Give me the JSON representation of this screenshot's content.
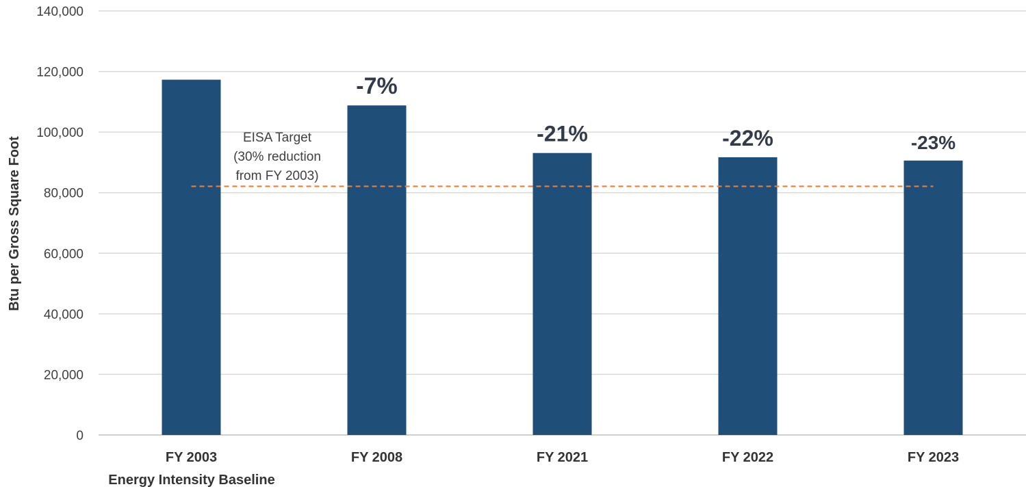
{
  "chart_data": {
    "type": "bar",
    "title": "",
    "ylabel": "Btu per Gross Square Foot",
    "ylim": [
      0,
      140000
    ],
    "yticks": [
      0,
      20000,
      40000,
      60000,
      80000,
      100000,
      120000,
      140000
    ],
    "ytick_labels": [
      "0",
      "20,000",
      "40,000",
      "60,000",
      "80,000",
      "100,000",
      "120,000",
      "140,000"
    ],
    "grid": true,
    "categories": [
      "FY 2003",
      "FY 2008",
      "FY 2021",
      "FY 2022",
      "FY 2023"
    ],
    "category_sublabel": "Energy Intensity Baseline",
    "values": [
      117300,
      108800,
      93100,
      91700,
      90600
    ],
    "bar_labels": [
      "",
      "-7%",
      "-21%",
      "-22%",
      "-23%"
    ],
    "bar_color": "#1f4e79",
    "target_line": {
      "value": 82100,
      "color": "#ed7d31",
      "style": "dashed",
      "label_lines": [
        "EISA Target",
        "(30% reduction",
        "from FY 2003)"
      ]
    }
  }
}
